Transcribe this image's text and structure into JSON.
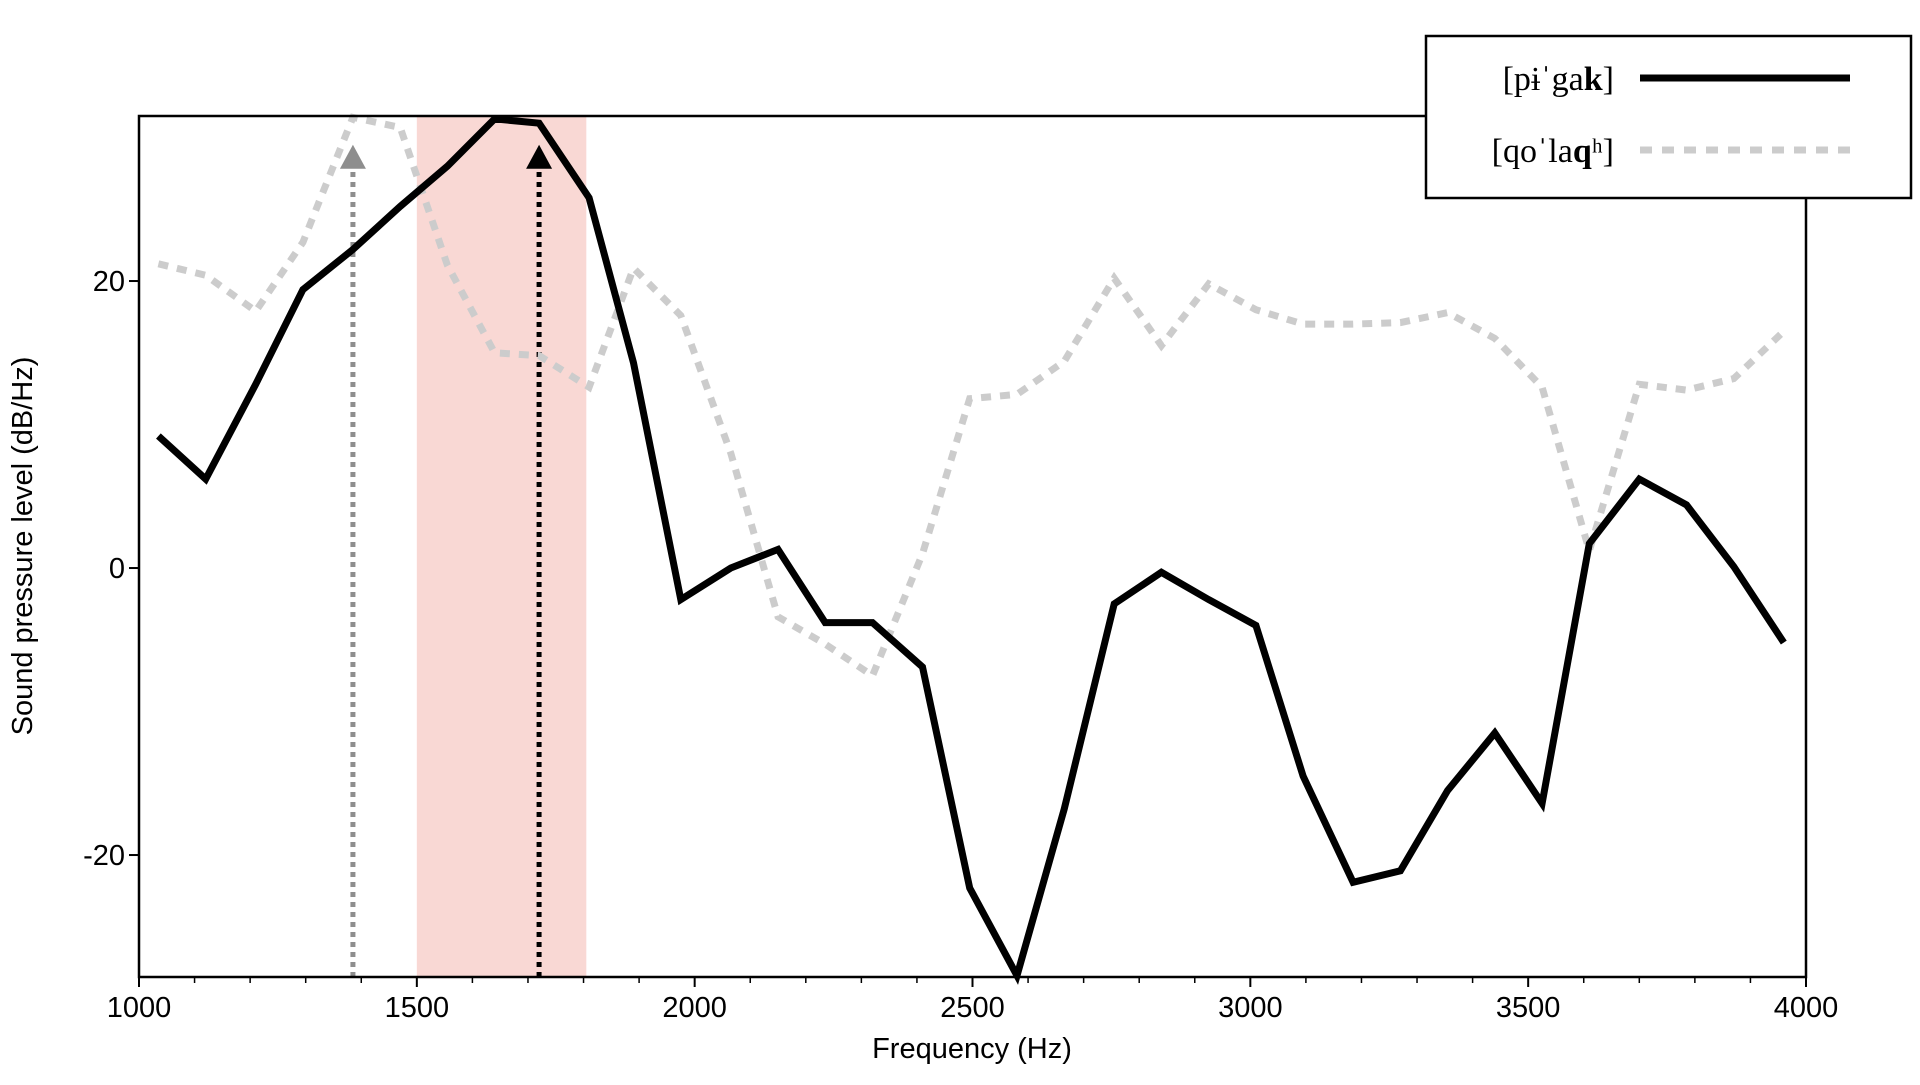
{
  "chart_data": {
    "type": "line",
    "xlabel": "Frequency (Hz)",
    "ylabel": "Sound pressure level (dB/Hz)",
    "xlim": [
      1000,
      4000
    ],
    "ylim": [
      -28.5,
      31.5
    ],
    "x_ticks": [
      "1000",
      "1500",
      "2000",
      "2500",
      "3000",
      "3500",
      "4000"
    ],
    "x_tick_values": [
      1000,
      1500,
      2000,
      2500,
      3000,
      3500,
      4000
    ],
    "x_minor_ticks": [
      1100,
      1200,
      1300,
      1400,
      1600,
      1700,
      1800,
      1900,
      2100,
      2200,
      2300,
      2400,
      2600,
      2700,
      2800,
      2900,
      3100,
      3200,
      3300,
      3400,
      3600,
      3700,
      3800,
      3900
    ],
    "y_ticks": [
      "20",
      "0",
      "-20"
    ],
    "y_tick_values": [
      20,
      0,
      -20
    ],
    "grid": false,
    "legend_position": "top-right",
    "shaded_band": {
      "x_start": 1500,
      "x_end": 1805,
      "color": "#f9d6d2"
    },
    "series": [
      {
        "name_parts": [
          {
            "text": "[pɨˈga",
            "bold": false
          },
          {
            "text": "k",
            "bold": true
          },
          {
            "text": "]",
            "bold": false
          }
        ],
        "style": "solid",
        "color": "#000000",
        "x": [
          1035,
          1120,
          1210,
          1295,
          1385,
          1470,
          1555,
          1640,
          1720,
          1810,
          1890,
          1975,
          2065,
          2150,
          2235,
          2320,
          2410,
          2495,
          2580,
          2665,
          2755,
          2840,
          2925,
          3010,
          3095,
          3185,
          3270,
          3355,
          3440,
          3525,
          3610,
          3700,
          3785,
          3870,
          3960
        ],
        "y": [
          9.2,
          6.2,
          12.8,
          19.4,
          22.2,
          25.2,
          28.0,
          31.3,
          31.0,
          25.8,
          14.3,
          -2.2,
          0.0,
          1.3,
          -3.8,
          -3.8,
          -6.9,
          -22.3,
          -28.4,
          -16.8,
          -2.5,
          -0.3,
          -2.2,
          -4.0,
          -14.5,
          -21.9,
          -21.1,
          -15.5,
          -11.5,
          -16.4,
          1.7,
          6.2,
          4.4,
          0.1,
          -5.2
        ]
      },
      {
        "name_parts": [
          {
            "text": "[qoˈla",
            "bold": false
          },
          {
            "text": "q",
            "bold": true
          },
          {
            "text": "ʰ]",
            "bold": false
          }
        ],
        "style": "dotted",
        "color": "#cccccc",
        "x": [
          1035,
          1120,
          1210,
          1295,
          1385,
          1470,
          1555,
          1640,
          1720,
          1810,
          1890,
          1975,
          2065,
          2150,
          2235,
          2320,
          2410,
          2495,
          2580,
          2665,
          2755,
          2840,
          2925,
          3010,
          3095,
          3185,
          3270,
          3355,
          3440,
          3525,
          3610,
          3700,
          3785,
          3870,
          3960
        ],
        "y": [
          21.2,
          20.4,
          17.9,
          22.7,
          31.4,
          30.7,
          21.1,
          15.0,
          14.8,
          12.6,
          20.9,
          17.6,
          8.0,
          -3.4,
          -5.3,
          -7.5,
          1.0,
          11.8,
          12.1,
          14.4,
          20.2,
          15.5,
          19.8,
          18.0,
          17.0,
          17.0,
          17.1,
          17.8,
          16.0,
          12.6,
          1.2,
          12.8,
          12.4,
          13.2,
          16.5
        ]
      }
    ],
    "markers": [
      {
        "x": 1385,
        "y": 29.5,
        "color": "#8e8e8e",
        "line_style": "dotted"
      },
      {
        "x": 1720,
        "y": 29.5,
        "color": "#000000",
        "line_style": "dotted"
      }
    ]
  }
}
